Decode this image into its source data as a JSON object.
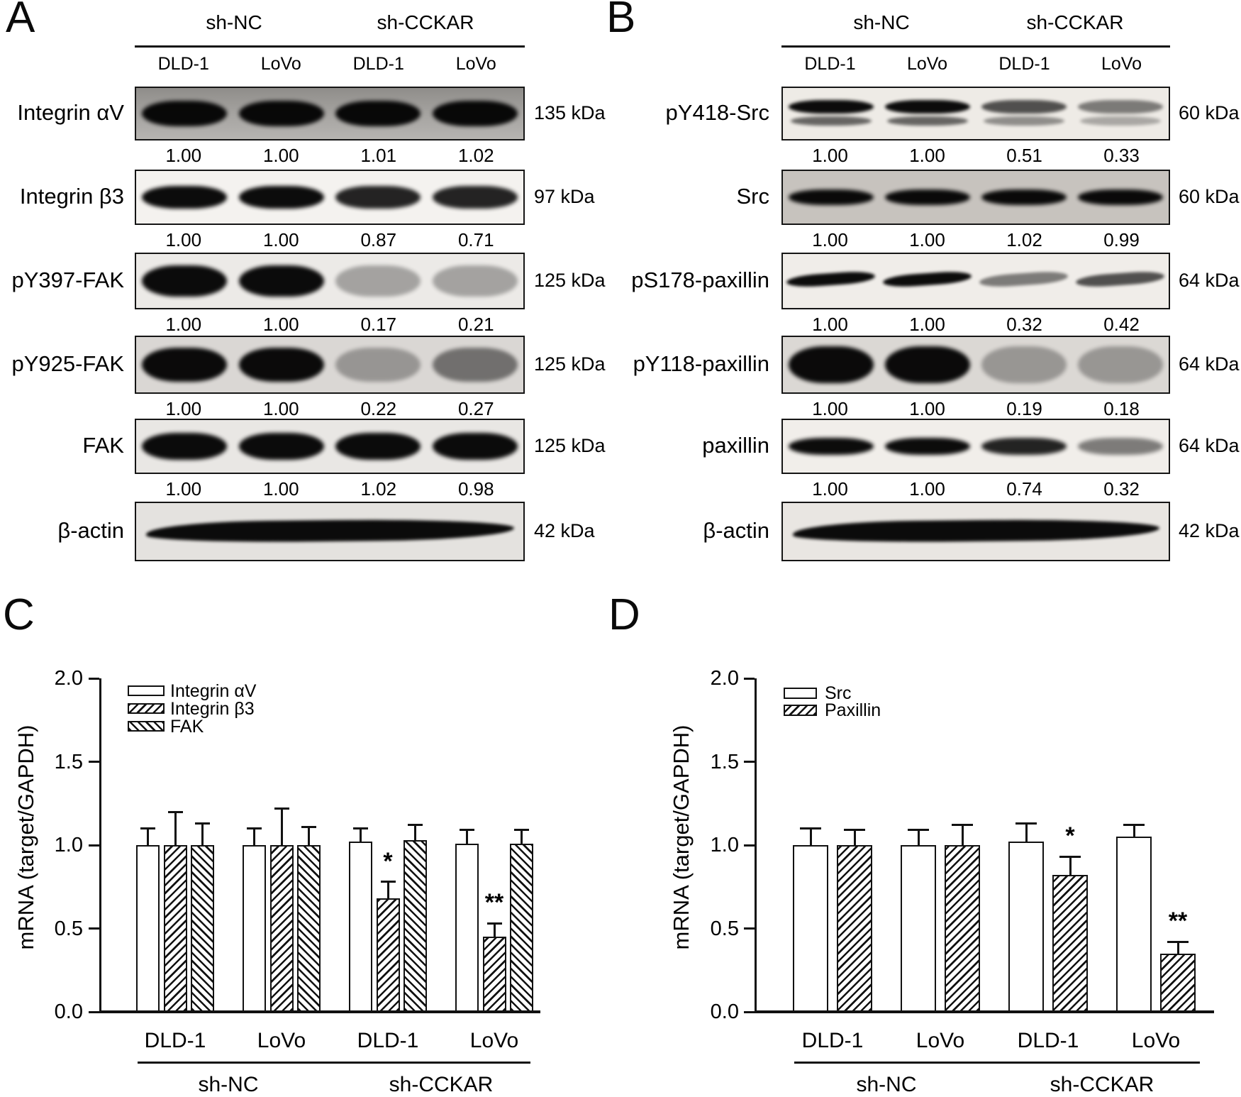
{
  "wb": {
    "a": {
      "panel_label": "A",
      "group_labels": [
        "sh-NC",
        "sh-CCKAR"
      ],
      "lane_labels": [
        "DLD-1",
        "LoVo",
        "DLD-1",
        "LoVo"
      ],
      "rows": [
        {
          "label": "Integrin αV",
          "kda": "135 kDa",
          "values": [
            "1.00",
            "1.00",
            "1.01",
            "1.02"
          ]
        },
        {
          "label": "Integrin β3",
          "kda": "97 kDa",
          "values": [
            "1.00",
            "1.00",
            "0.87",
            "0.71"
          ]
        },
        {
          "label": "pY397-FAK",
          "kda": "125 kDa",
          "values": [
            "1.00",
            "1.00",
            "0.17",
            "0.21"
          ]
        },
        {
          "label": "pY925-FAK",
          "kda": "125 kDa",
          "values": [
            "1.00",
            "1.00",
            "0.22",
            "0.27"
          ]
        },
        {
          "label": "FAK",
          "kda": "125 kDa",
          "values": [
            "1.00",
            "1.00",
            "1.02",
            "0.98"
          ]
        },
        {
          "label": "β-actin",
          "kda": "42 kDa",
          "values": null
        }
      ]
    },
    "b": {
      "panel_label": "B",
      "group_labels": [
        "sh-NC",
        "sh-CCKAR"
      ],
      "lane_labels": [
        "DLD-1",
        "LoVo",
        "DLD-1",
        "LoVo"
      ],
      "rows": [
        {
          "label": "pY418-Src",
          "kda": "60 kDa",
          "values": [
            "1.00",
            "1.00",
            "0.51",
            "0.33"
          ]
        },
        {
          "label": "Src",
          "kda": "60 kDa",
          "values": [
            "1.00",
            "1.00",
            "1.02",
            "0.99"
          ]
        },
        {
          "label": "pS178-paxillin",
          "kda": "64 kDa",
          "values": [
            "1.00",
            "1.00",
            "0.32",
            "0.42"
          ]
        },
        {
          "label": "pY118-paxillin",
          "kda": "64 kDa",
          "values": [
            "1.00",
            "1.00",
            "0.19",
            "0.18"
          ]
        },
        {
          "label": "paxillin",
          "kda": "64 kDa",
          "values": [
            "1.00",
            "1.00",
            "0.74",
            "0.32"
          ]
        },
        {
          "label": "β-actin",
          "kda": "42 kDa",
          "values": null
        }
      ]
    }
  },
  "chart_data": [
    {
      "id": "C",
      "panel_label": "C",
      "type": "bar",
      "title": "",
      "ylabel": "mRNA (target/GAPDH)",
      "xlabel": "",
      "ylim": [
        0.0,
        2.0
      ],
      "yticks": [
        "0.0",
        "0.5",
        "1.0",
        "1.5",
        "2.0"
      ],
      "grid": false,
      "legend_position": "top-left",
      "categories": [
        "DLD-1",
        "LoVo",
        "DLD-1",
        "LoVo"
      ],
      "group_labels": [
        "sh-NC",
        "sh-CCKAR"
      ],
      "series": [
        {
          "name": "Integrin αV",
          "pattern": "plain",
          "values": [
            1.0,
            1.0,
            1.02,
            1.01
          ],
          "errors": [
            0.1,
            0.1,
            0.08,
            0.08
          ],
          "sig": [
            "",
            "",
            "",
            ""
          ]
        },
        {
          "name": "Integrin β3",
          "pattern": "hatch-fwd",
          "values": [
            1.0,
            1.0,
            0.68,
            0.45
          ],
          "errors": [
            0.2,
            0.22,
            0.1,
            0.08
          ],
          "sig": [
            "",
            "",
            "*",
            "**"
          ]
        },
        {
          "name": "FAK",
          "pattern": "hatch-back",
          "values": [
            1.0,
            1.0,
            1.03,
            1.01
          ],
          "errors": [
            0.13,
            0.11,
            0.09,
            0.08
          ],
          "sig": [
            "",
            "",
            "",
            ""
          ]
        }
      ]
    },
    {
      "id": "D",
      "panel_label": "D",
      "type": "bar",
      "title": "",
      "ylabel": "mRNA (target/GAPDH)",
      "xlabel": "",
      "ylim": [
        0.0,
        2.0
      ],
      "yticks": [
        "0.0",
        "0.5",
        "1.0",
        "1.5",
        "2.0"
      ],
      "grid": false,
      "legend_position": "top-left",
      "categories": [
        "DLD-1",
        "LoVo",
        "DLD-1",
        "LoVo"
      ],
      "group_labels": [
        "sh-NC",
        "sh-CCKAR"
      ],
      "series": [
        {
          "name": "Src",
          "pattern": "plain",
          "values": [
            1.0,
            1.0,
            1.02,
            1.05
          ],
          "errors": [
            0.1,
            0.09,
            0.11,
            0.07
          ],
          "sig": [
            "",
            "",
            "",
            ""
          ]
        },
        {
          "name": "Paxillin",
          "pattern": "hatch-fwd",
          "values": [
            1.0,
            1.0,
            0.82,
            0.35
          ],
          "errors": [
            0.09,
            0.12,
            0.11,
            0.07
          ],
          "sig": [
            "",
            "",
            "*",
            "**"
          ]
        }
      ]
    }
  ]
}
